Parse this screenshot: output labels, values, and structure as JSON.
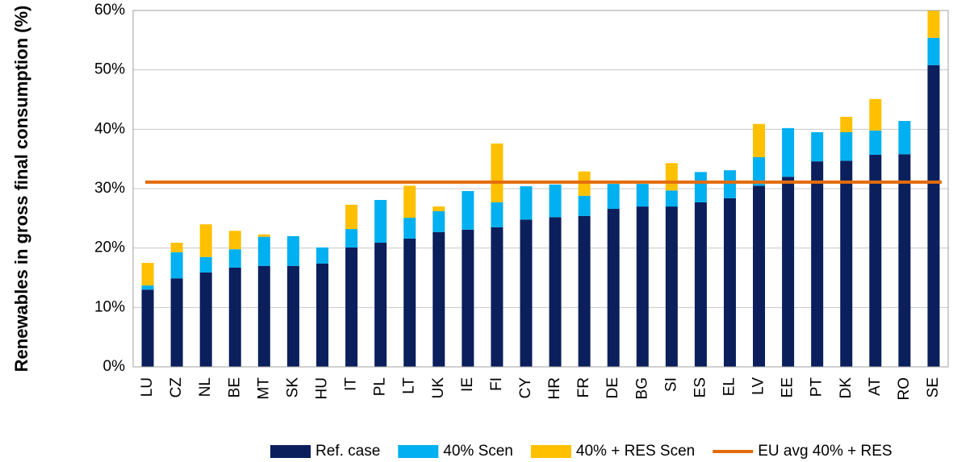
{
  "chart_data": {
    "type": "stacked_bar",
    "y_label": "Renewables in gross final consumption (%)",
    "categories": [
      "LU",
      "CZ",
      "NL",
      "BE",
      "MT",
      "SK",
      "HU",
      "IT",
      "PL",
      "LT",
      "UK",
      "IE",
      "FI",
      "CY",
      "HR",
      "FR",
      "DE",
      "BG",
      "SI",
      "ES",
      "EL",
      "LV",
      "EE",
      "PT",
      "DK",
      "AT",
      "RO",
      "SE"
    ],
    "series": [
      {
        "name": "Ref. case",
        "color": "#0a1f5c",
        "values": [
          13.0,
          14.9,
          15.9,
          16.7,
          17.0,
          17.0,
          17.4,
          20.1,
          20.9,
          21.6,
          22.7,
          23.1,
          23.5,
          24.8,
          25.2,
          25.4,
          26.6,
          27.0,
          27.0,
          27.7,
          28.4,
          30.5,
          32.0,
          34.6,
          34.7,
          35.7,
          35.8,
          50.8
        ]
      },
      {
        "name": "40% Scen",
        "color": "#00b0f0",
        "values": [
          0.7,
          4.4,
          2.6,
          3.1,
          4.9,
          5.0,
          2.7,
          3.1,
          7.2,
          3.5,
          3.5,
          6.5,
          4.2,
          5.6,
          5.5,
          3.4,
          4.2,
          3.8,
          2.7,
          5.1,
          4.7,
          4.8,
          8.2,
          4.9,
          4.8,
          4.1,
          5.6,
          4.6
        ]
      },
      {
        "name": "40% + RES Scen",
        "color": "#ffc000",
        "values": [
          3.8,
          1.6,
          5.5,
          3.1,
          0.4,
          0,
          0,
          4.1,
          0,
          5.4,
          0.8,
          0,
          9.9,
          0,
          0,
          4.1,
          0,
          0,
          4.6,
          0,
          0,
          5.6,
          0,
          0,
          2.6,
          5.3,
          0,
          4.6
        ]
      }
    ],
    "reference_line": {
      "name": "EU avg 40% + RES",
      "color": "#e36c0a",
      "value": 31.1
    },
    "ylim": [
      0,
      60
    ],
    "yticks": [
      {
        "value": 0,
        "label": "0%"
      },
      {
        "value": 10,
        "label": "10%"
      },
      {
        "value": 20,
        "label": "20%"
      },
      {
        "value": 30,
        "label": "30%"
      },
      {
        "value": 40,
        "label": "40%"
      },
      {
        "value": 50,
        "label": "50%"
      },
      {
        "value": 60,
        "label": "60%"
      }
    ],
    "grid": true
  }
}
